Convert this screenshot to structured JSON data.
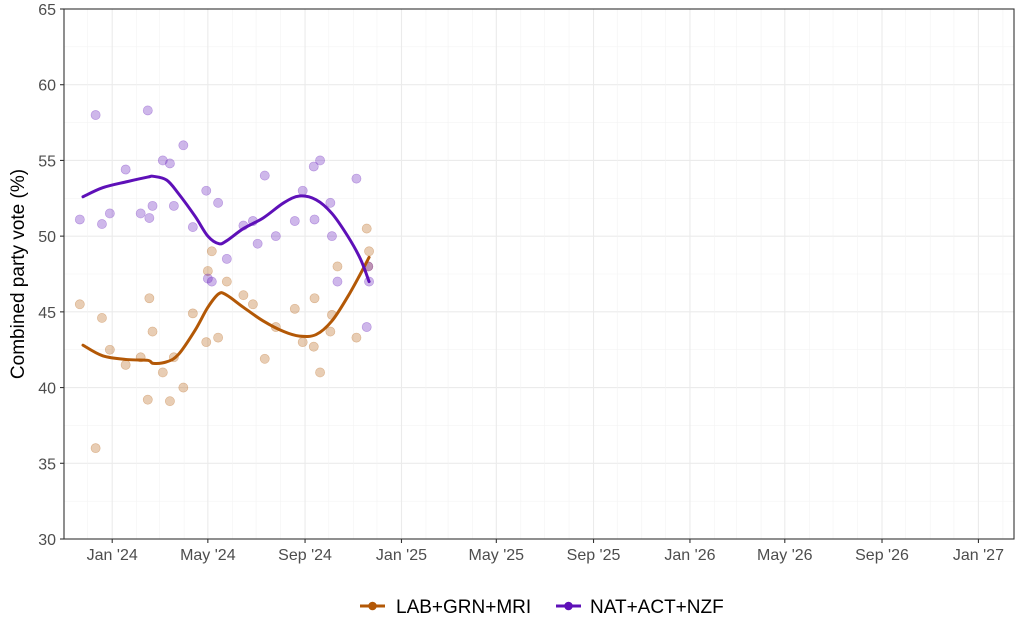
{
  "chart_data": {
    "type": "scatter",
    "title": "",
    "xlabel": "",
    "ylabel": "Combined party vote (%)",
    "ylim": [
      30,
      65
    ],
    "xlim": [
      "2023-11-01",
      "2027-02-15"
    ],
    "y_ticks": [
      30,
      35,
      40,
      45,
      50,
      55,
      60,
      65
    ],
    "x_ticks": [
      {
        "date": "2024-01-01",
        "label": "Jan '24"
      },
      {
        "date": "2024-05-01",
        "label": "May '24"
      },
      {
        "date": "2024-09-01",
        "label": "Sep '24"
      },
      {
        "date": "2025-01-01",
        "label": "Jan '25"
      },
      {
        "date": "2025-05-01",
        "label": "May '25"
      },
      {
        "date": "2025-09-01",
        "label": "Sep '25"
      },
      {
        "date": "2026-01-01",
        "label": "Jan '26"
      },
      {
        "date": "2026-05-01",
        "label": "May '26"
      },
      {
        "date": "2026-09-01",
        "label": "Sep '26"
      },
      {
        "date": "2027-01-01",
        "label": "Jan '27"
      }
    ],
    "grid": true,
    "legend_position": "bottom",
    "series": [
      {
        "name": "LAB+GRN+MRI",
        "color": "#b35806",
        "points": [
          {
            "x": "2023-11-21",
            "y": 45.5
          },
          {
            "x": "2023-12-11",
            "y": 36.0
          },
          {
            "x": "2023-12-19",
            "y": 44.6
          },
          {
            "x": "2023-12-29",
            "y": 42.5
          },
          {
            "x": "2024-01-18",
            "y": 41.5
          },
          {
            "x": "2024-02-06",
            "y": 42.0
          },
          {
            "x": "2024-02-15",
            "y": 39.2
          },
          {
            "x": "2024-02-17",
            "y": 45.9
          },
          {
            "x": "2024-02-21",
            "y": 43.7
          },
          {
            "x": "2024-03-05",
            "y": 41.0
          },
          {
            "x": "2024-03-14",
            "y": 39.1
          },
          {
            "x": "2024-03-19",
            "y": 42.0
          },
          {
            "x": "2024-03-31",
            "y": 40.0
          },
          {
            "x": "2024-04-12",
            "y": 44.9
          },
          {
            "x": "2024-04-29",
            "y": 43.0
          },
          {
            "x": "2024-05-01",
            "y": 47.7
          },
          {
            "x": "2024-05-06",
            "y": 49.0
          },
          {
            "x": "2024-05-14",
            "y": 43.3
          },
          {
            "x": "2024-05-25",
            "y": 47.0
          },
          {
            "x": "2024-06-15",
            "y": 46.1
          },
          {
            "x": "2024-06-27",
            "y": 45.5
          },
          {
            "x": "2024-07-12",
            "y": 41.9
          },
          {
            "x": "2024-07-26",
            "y": 44.0
          },
          {
            "x": "2024-08-19",
            "y": 45.2
          },
          {
            "x": "2024-08-29",
            "y": 43.0
          },
          {
            "x": "2024-09-12",
            "y": 42.7
          },
          {
            "x": "2024-09-13",
            "y": 45.9
          },
          {
            "x": "2024-09-20",
            "y": 41.0
          },
          {
            "x": "2024-10-03",
            "y": 43.7
          },
          {
            "x": "2024-10-05",
            "y": 44.8
          },
          {
            "x": "2024-10-12",
            "y": 48.0
          },
          {
            "x": "2024-11-05",
            "y": 43.3
          },
          {
            "x": "2024-11-18",
            "y": 50.5
          },
          {
            "x": "2024-11-21",
            "y": 49.0
          },
          {
            "x": "2024-11-20",
            "y": 48.0
          }
        ],
        "trend": [
          {
            "x": "2023-11-25",
            "y": 42.8
          },
          {
            "x": "2023-12-20",
            "y": 42.1
          },
          {
            "x": "2024-01-20",
            "y": 41.85
          },
          {
            "x": "2024-02-15",
            "y": 41.8
          },
          {
            "x": "2024-02-22",
            "y": 41.6
          },
          {
            "x": "2024-03-10",
            "y": 41.7
          },
          {
            "x": "2024-03-25",
            "y": 42.2
          },
          {
            "x": "2024-04-15",
            "y": 43.8
          },
          {
            "x": "2024-05-01",
            "y": 45.3
          },
          {
            "x": "2024-05-15",
            "y": 46.2
          },
          {
            "x": "2024-05-25",
            "y": 46.1
          },
          {
            "x": "2024-06-15",
            "y": 45.3
          },
          {
            "x": "2024-07-10",
            "y": 44.4
          },
          {
            "x": "2024-08-05",
            "y": 43.7
          },
          {
            "x": "2024-08-25",
            "y": 43.4
          },
          {
            "x": "2024-09-15",
            "y": 43.5
          },
          {
            "x": "2024-10-05",
            "y": 44.4
          },
          {
            "x": "2024-10-25",
            "y": 46.0
          },
          {
            "x": "2024-11-10",
            "y": 47.5
          },
          {
            "x": "2024-11-21",
            "y": 48.6
          }
        ]
      },
      {
        "name": "NAT+ACT+NZF",
        "color": "#5e10b8",
        "points": [
          {
            "x": "2023-11-21",
            "y": 51.1
          },
          {
            "x": "2023-12-11",
            "y": 58.0
          },
          {
            "x": "2023-12-19",
            "y": 50.8
          },
          {
            "x": "2023-12-29",
            "y": 51.5
          },
          {
            "x": "2024-01-18",
            "y": 54.4
          },
          {
            "x": "2024-02-06",
            "y": 51.5
          },
          {
            "x": "2024-02-15",
            "y": 58.3
          },
          {
            "x": "2024-02-17",
            "y": 51.2
          },
          {
            "x": "2024-02-21",
            "y": 52.0
          },
          {
            "x": "2024-03-05",
            "y": 55.0
          },
          {
            "x": "2024-03-14",
            "y": 54.8
          },
          {
            "x": "2024-03-19",
            "y": 52.0
          },
          {
            "x": "2024-03-31",
            "y": 56.0
          },
          {
            "x": "2024-04-12",
            "y": 50.6
          },
          {
            "x": "2024-04-29",
            "y": 53.0
          },
          {
            "x": "2024-05-01",
            "y": 47.2
          },
          {
            "x": "2024-05-06",
            "y": 47.0
          },
          {
            "x": "2024-05-14",
            "y": 52.2
          },
          {
            "x": "2024-05-25",
            "y": 48.5
          },
          {
            "x": "2024-06-15",
            "y": 50.7
          },
          {
            "x": "2024-06-27",
            "y": 51.0
          },
          {
            "x": "2024-07-03",
            "y": 49.5
          },
          {
            "x": "2024-07-12",
            "y": 54.0
          },
          {
            "x": "2024-07-26",
            "y": 50.0
          },
          {
            "x": "2024-08-19",
            "y": 51.0
          },
          {
            "x": "2024-08-29",
            "y": 53.0
          },
          {
            "x": "2024-09-12",
            "y": 54.6
          },
          {
            "x": "2024-09-13",
            "y": 51.1
          },
          {
            "x": "2024-09-20",
            "y": 55.0
          },
          {
            "x": "2024-10-03",
            "y": 52.2
          },
          {
            "x": "2024-10-05",
            "y": 50.0
          },
          {
            "x": "2024-10-12",
            "y": 47.0
          },
          {
            "x": "2024-11-05",
            "y": 53.8
          },
          {
            "x": "2024-11-18",
            "y": 44.0
          },
          {
            "x": "2024-11-21",
            "y": 47.0
          },
          {
            "x": "2024-11-20",
            "y": 48.0
          }
        ],
        "trend": [
          {
            "x": "2023-11-25",
            "y": 52.6
          },
          {
            "x": "2023-12-20",
            "y": 53.2
          },
          {
            "x": "2024-01-20",
            "y": 53.6
          },
          {
            "x": "2024-02-15",
            "y": 53.9
          },
          {
            "x": "2024-02-22",
            "y": 53.95
          },
          {
            "x": "2024-03-10",
            "y": 53.7
          },
          {
            "x": "2024-03-25",
            "y": 52.8
          },
          {
            "x": "2024-04-15",
            "y": 51.3
          },
          {
            "x": "2024-05-01",
            "y": 50.0
          },
          {
            "x": "2024-05-15",
            "y": 49.5
          },
          {
            "x": "2024-05-25",
            "y": 49.7
          },
          {
            "x": "2024-06-15",
            "y": 50.5
          },
          {
            "x": "2024-07-10",
            "y": 51.2
          },
          {
            "x": "2024-08-05",
            "y": 52.2
          },
          {
            "x": "2024-08-25",
            "y": 52.65
          },
          {
            "x": "2024-09-15",
            "y": 52.4
          },
          {
            "x": "2024-10-05",
            "y": 51.5
          },
          {
            "x": "2024-10-25",
            "y": 50.0
          },
          {
            "x": "2024-11-10",
            "y": 48.5
          },
          {
            "x": "2024-11-21",
            "y": 47.0
          }
        ]
      }
    ]
  }
}
